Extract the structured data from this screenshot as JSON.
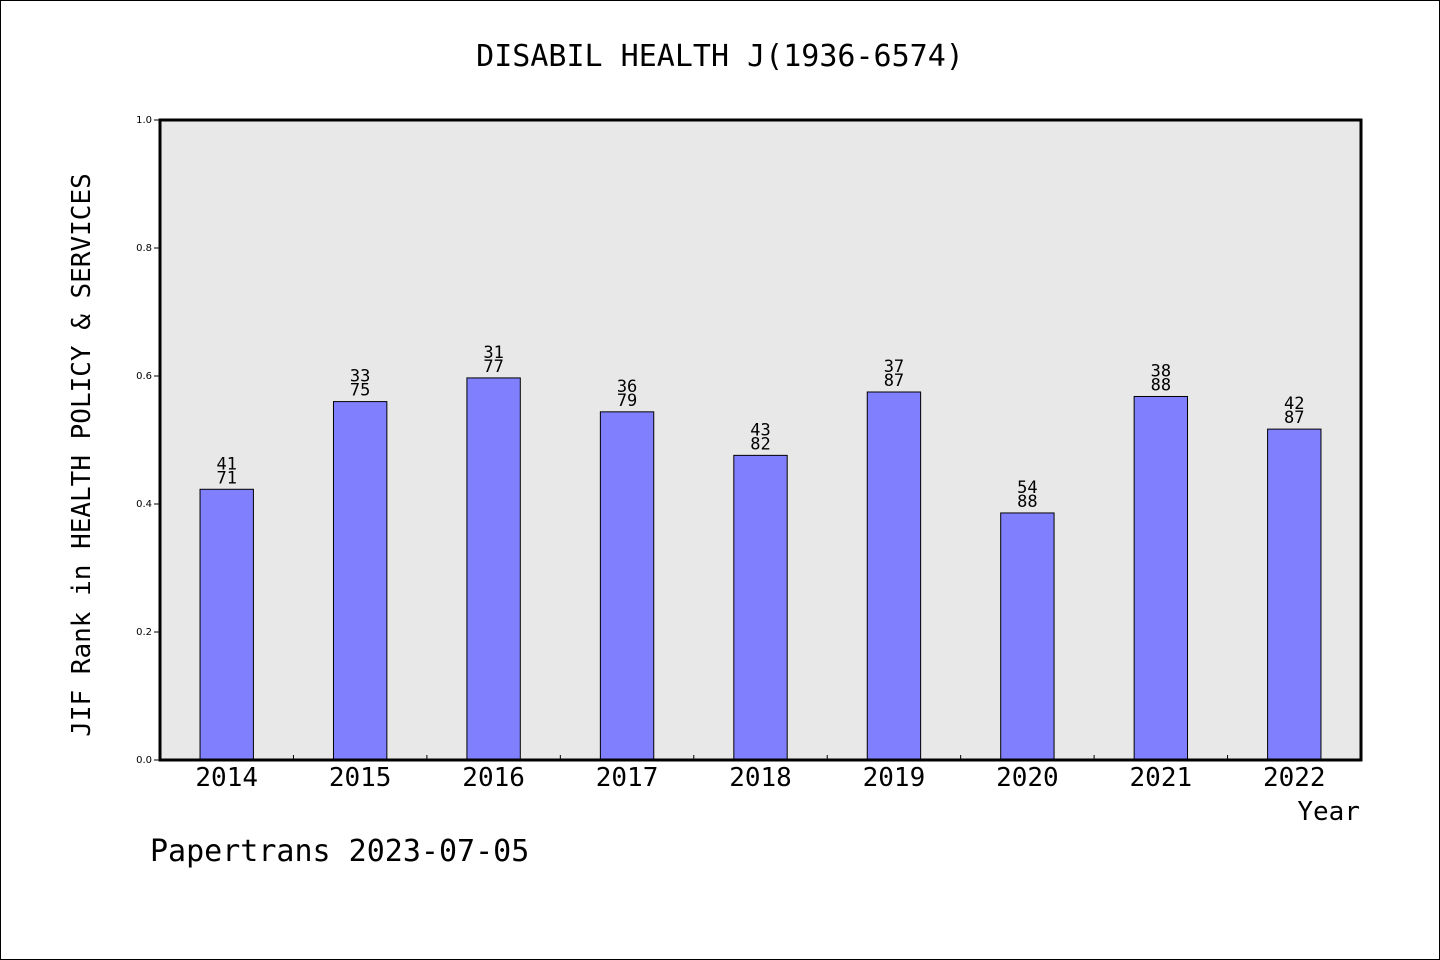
{
  "chart_data": {
    "type": "bar",
    "title": "DISABIL HEALTH J(1936-6574)",
    "xlabel": "Year",
    "ylabel": "JIF Rank in HEALTH POLICY & SERVICES",
    "ylim": [
      0,
      1.0
    ],
    "yticks": [
      "0.0",
      "0.2",
      "0.4",
      "0.6",
      "0.8",
      "1.0"
    ],
    "categories": [
      "2014",
      "2015",
      "2016",
      "2017",
      "2018",
      "2019",
      "2020",
      "2021",
      "2022"
    ],
    "values": [
      0.423,
      0.56,
      0.597,
      0.544,
      0.476,
      0.575,
      0.386,
      0.568,
      0.517
    ],
    "rank": [
      "41",
      "33",
      "31",
      "36",
      "43",
      "37",
      "54",
      "38",
      "42"
    ],
    "total": [
      "71",
      "75",
      "77",
      "79",
      "82",
      "87",
      "88",
      "88",
      "87"
    ],
    "bar_color": "#8080ff",
    "plot_background": "#e8e8e8",
    "grid": false
  },
  "footer": "Papertrans 2023-07-05"
}
